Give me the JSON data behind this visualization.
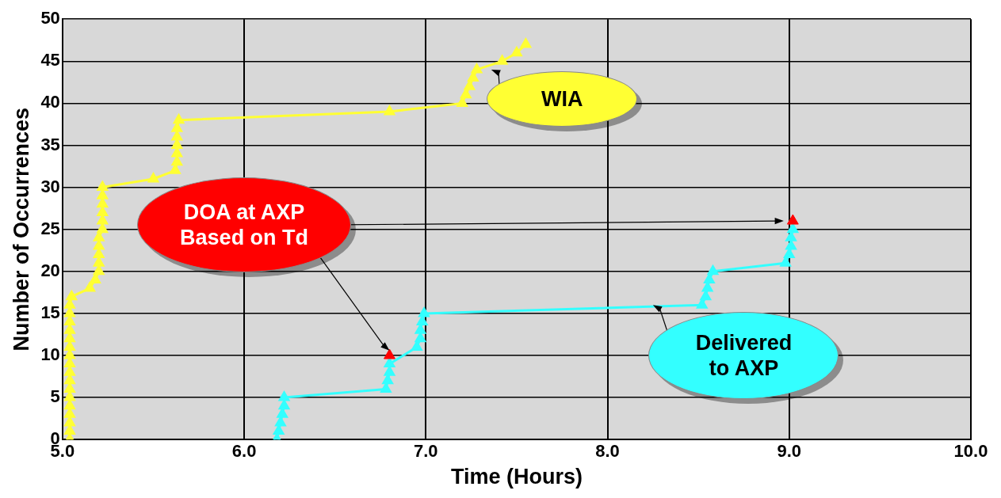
{
  "chart_data": {
    "type": "line",
    "xlabel": "Time (Hours)",
    "ylabel": "Number of Occurrences",
    "xlim": [
      5,
      10
    ],
    "xticks": [
      {
        "value": 5,
        "label": "5.0"
      },
      {
        "value": 6,
        "label": "6.0"
      },
      {
        "value": 7,
        "label": "7.0"
      },
      {
        "value": 8,
        "label": "8.0"
      },
      {
        "value": 9,
        "label": "9.0"
      },
      {
        "value": 10,
        "label": "10.0"
      }
    ],
    "ylim": [
      0,
      50
    ],
    "yticks": [
      0,
      5,
      10,
      15,
      20,
      25,
      30,
      35,
      40,
      45,
      50
    ],
    "grid": true,
    "legend": false,
    "marker": "triangle",
    "line_style": "solid",
    "series": [
      {
        "name": "WIA",
        "color": "#ffff33",
        "x": [
          5.04,
          5.04,
          5.04,
          5.04,
          5.04,
          5.04,
          5.04,
          5.04,
          5.04,
          5.04,
          5.04,
          5.04,
          5.04,
          5.04,
          5.04,
          5.04,
          5.04,
          5.05,
          5.15,
          5.18,
          5.2,
          5.2,
          5.2,
          5.2,
          5.2,
          5.22,
          5.22,
          5.22,
          5.22,
          5.22,
          5.22,
          5.5,
          5.62,
          5.63,
          5.63,
          5.63,
          5.63,
          5.63,
          5.64,
          6.8,
          7.2,
          7.22,
          7.24,
          7.26,
          7.28,
          7.42,
          7.5,
          7.55
        ],
        "values": [
          0,
          1,
          2,
          3,
          4,
          5,
          6,
          7,
          8,
          9,
          10,
          11,
          12,
          13,
          14,
          15,
          16,
          17,
          18,
          19,
          20,
          21,
          22,
          23,
          24,
          25,
          26,
          27,
          28,
          29,
          30,
          31,
          32,
          33,
          34,
          35,
          36,
          37,
          38,
          39,
          40,
          41,
          42,
          43,
          44,
          45,
          46,
          47
        ]
      },
      {
        "name": "Delivered to AXP",
        "color": "#33ffff",
        "x": [
          6.18,
          6.19,
          6.2,
          6.21,
          6.22,
          6.22,
          6.78,
          6.79,
          6.8,
          6.8,
          6.95,
          6.97,
          6.97,
          6.98,
          6.99,
          8.52,
          8.54,
          8.55,
          8.56,
          8.58,
          8.98,
          9.0,
          9.01,
          9.01,
          9.02
        ],
        "values": [
          0,
          1,
          2,
          3,
          4,
          5,
          6,
          7,
          8,
          9,
          11,
          12,
          13,
          14,
          15,
          16,
          17,
          18,
          19,
          20,
          21,
          22,
          23,
          24,
          25
        ]
      },
      {
        "name": "DOA at AXP Based on Td",
        "type": "scatter",
        "color": "#ff0000",
        "x": [
          6.8,
          9.02
        ],
        "values": [
          10,
          26
        ]
      }
    ]
  }
}
